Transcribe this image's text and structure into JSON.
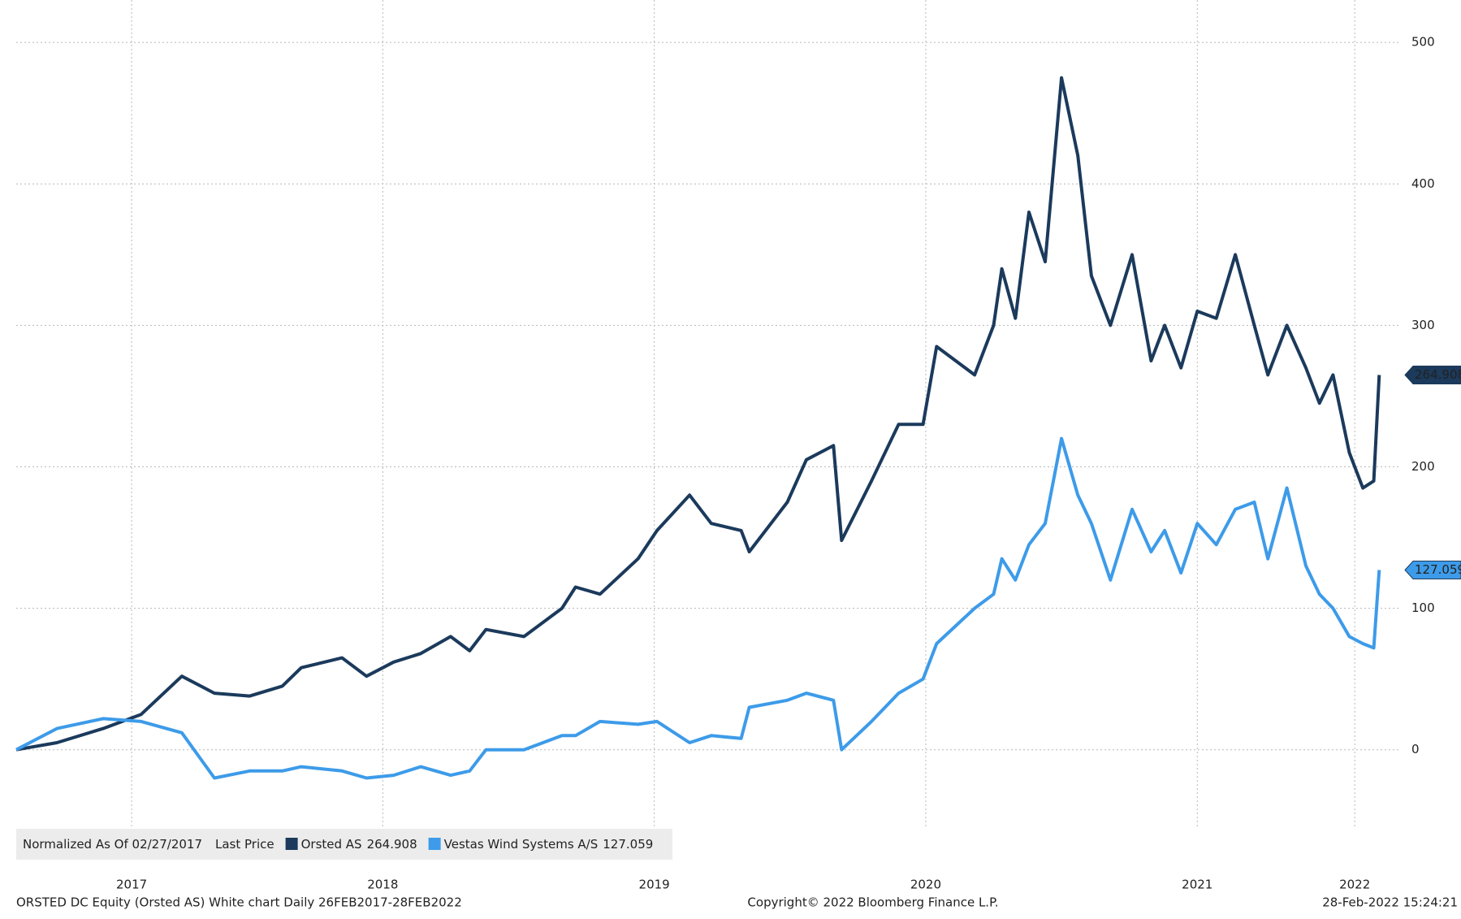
{
  "chart_data": {
    "type": "line",
    "legend_note": "Normalized As Of 02/27/2017",
    "legend_field": "Last Price",
    "footer_left": "ORSTED DC Equity (Orsted AS) White chart  Daily 26FEB2017-28FEB2022",
    "footer_center": "Copyright© 2022 Bloomberg Finance L.P.",
    "footer_right": "28-Feb-2022 15:24:21",
    "x": [
      2017.15,
      2017.3,
      2017.47,
      2017.61,
      2017.76,
      2017.88,
      2018.01,
      2018.13,
      2018.2,
      2018.35,
      2018.44,
      2018.54,
      2018.64,
      2018.75,
      2018.82,
      2018.88,
      2019.02,
      2019.16,
      2019.21,
      2019.3,
      2019.44,
      2019.51,
      2019.63,
      2019.71,
      2019.82,
      2019.85,
      2019.99,
      2020.06,
      2020.16,
      2020.19,
      2020.3,
      2020.4,
      2020.49,
      2020.54,
      2020.68,
      2020.75,
      2020.78,
      2020.83,
      2020.88,
      2020.94,
      2021.0,
      2021.06,
      2021.11,
      2021.18,
      2021.26,
      2021.33,
      2021.38,
      2021.44,
      2021.5,
      2021.57,
      2021.64,
      2021.71,
      2021.76,
      2021.83,
      2021.9,
      2021.95,
      2022.0,
      2022.06,
      2022.11,
      2022.15,
      2022.17
    ],
    "series": [
      {
        "name": "Orsted AS",
        "color": "#1b3a5c",
        "values": [
          0,
          5,
          15,
          25,
          52,
          40,
          38,
          45,
          58,
          65,
          52,
          62,
          68,
          80,
          70,
          85,
          80,
          100,
          115,
          110,
          135,
          155,
          180,
          160,
          155,
          140,
          175,
          205,
          215,
          148,
          190,
          230,
          230,
          285,
          265,
          300,
          340,
          305,
          380,
          345,
          475,
          420,
          335,
          300,
          350,
          275,
          300,
          270,
          310,
          305,
          350,
          300,
          265,
          300,
          270,
          245,
          265,
          210,
          185,
          190,
          264.908
        ]
      },
      {
        "name": "Vestas Wind Systems A/S",
        "color": "#3d9be9",
        "values": [
          0,
          15,
          22,
          20,
          12,
          -20,
          -15,
          -15,
          -12,
          -15,
          -20,
          -18,
          -12,
          -18,
          -15,
          0,
          0,
          10,
          10,
          20,
          18,
          20,
          5,
          10,
          8,
          30,
          35,
          40,
          35,
          0,
          20,
          40,
          50,
          75,
          100,
          110,
          135,
          120,
          145,
          160,
          220,
          180,
          160,
          120,
          170,
          140,
          155,
          125,
          160,
          145,
          170,
          175,
          135,
          185,
          130,
          110,
          100,
          80,
          75,
          72,
          127.059
        ]
      }
    ],
    "xlim": [
      2017.15,
      2022.25
    ],
    "xticks": [
      {
        "value": 2017.575,
        "label": "2017"
      },
      {
        "value": 2018.5,
        "label": "2018"
      },
      {
        "value": 2019.5,
        "label": "2019"
      },
      {
        "value": 2020.5,
        "label": "2020"
      },
      {
        "value": 2021.5,
        "label": "2021"
      },
      {
        "value": 2022.08,
        "label": "2022"
      }
    ],
    "ylim": [
      -80,
      530
    ],
    "yticks": [
      0,
      100,
      200,
      300,
      400,
      500
    ],
    "grid": true
  }
}
